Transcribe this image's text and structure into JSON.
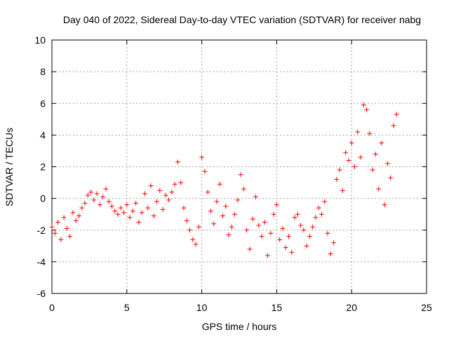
{
  "chart_data": {
    "type": "scatter",
    "title": "Day 040 of 2022, Sidereal Day-to-day VTEC variation (SDTVAR) for receiver nabg",
    "xlabel": "GPS time / hours",
    "ylabel": "SDTVAR / TECUs",
    "xlim": [
      0,
      25
    ],
    "ylim": [
      -6,
      10
    ],
    "xticks": [
      0,
      5,
      10,
      15,
      20,
      25
    ],
    "yticks": [
      -6,
      -4,
      -2,
      0,
      2,
      4,
      6,
      8,
      10
    ],
    "xtick_labels": [
      "0",
      "5",
      "10",
      "15",
      "20",
      "25"
    ],
    "ytick_labels": [
      "-6",
      "-4",
      "-2",
      "0",
      "2",
      "4",
      "6",
      "8",
      "10"
    ],
    "grid": true,
    "legend": "none",
    "marker": "plus",
    "color": "#ff0000",
    "series": [
      {
        "name": "SDTVAR",
        "x": [
          0.0,
          0.2,
          0.4,
          0.6,
          0.8,
          1.0,
          1.2,
          1.4,
          1.6,
          1.8,
          2.0,
          2.2,
          2.4,
          2.6,
          2.8,
          3.0,
          3.2,
          3.4,
          3.6,
          3.8,
          4.0,
          4.2,
          4.4,
          4.6,
          4.8,
          5.0,
          5.2,
          5.4,
          5.6,
          5.8,
          6.0,
          6.2,
          6.4,
          6.6,
          6.8,
          7.0,
          7.2,
          7.4,
          7.6,
          7.8,
          8.0,
          8.2,
          8.4,
          8.6,
          8.8,
          9.0,
          9.2,
          9.4,
          9.6,
          9.8,
          10.0,
          10.2,
          10.4,
          10.6,
          10.8,
          11.0,
          11.2,
          11.4,
          11.6,
          11.8,
          12.0,
          12.2,
          12.4,
          12.6,
          12.8,
          13.0,
          13.2,
          13.4,
          13.6,
          13.8,
          14.0,
          14.2,
          14.4,
          14.6,
          14.8,
          15.0,
          15.2,
          15.4,
          15.6,
          15.8,
          16.0,
          16.2,
          16.4,
          16.6,
          16.8,
          17.0,
          17.2,
          17.4,
          17.6,
          17.8,
          18.0,
          18.2,
          18.4,
          18.6,
          18.8,
          19.0,
          19.2,
          19.4,
          19.6,
          19.8,
          20.0,
          20.2,
          20.4,
          20.6,
          20.8,
          21.0,
          21.2,
          21.4,
          21.6,
          21.8,
          22.0,
          22.2,
          22.4,
          22.6,
          22.8,
          23.0
        ],
        "y": [
          -1.8,
          -2.2,
          -1.5,
          -2.6,
          -1.2,
          -1.9,
          -2.4,
          -0.9,
          -1.4,
          -1.1,
          -0.6,
          -0.3,
          0.2,
          0.4,
          -0.1,
          0.3,
          -0.4,
          0.1,
          0.6,
          -0.2,
          -0.5,
          -0.8,
          -1.0,
          -0.6,
          -0.9,
          -0.4,
          -1.2,
          -0.8,
          -0.3,
          -1.5,
          -0.9,
          0.3,
          -0.6,
          0.8,
          -1.1,
          -0.2,
          0.5,
          -0.7,
          0.2,
          -0.1,
          0.4,
          0.9,
          2.3,
          1.0,
          -0.6,
          -1.4,
          -2.0,
          -2.6,
          -2.9,
          -1.8,
          2.6,
          1.7,
          0.4,
          -0.8,
          -1.6,
          -0.2,
          0.9,
          -1.1,
          -0.5,
          -2.3,
          -1.8,
          -1.0,
          -0.1,
          1.5,
          0.6,
          -2.0,
          -3.2,
          -1.3,
          0.1,
          -1.7,
          -2.4,
          -1.5,
          -3.6,
          -2.2,
          -1.0,
          -0.4,
          -2.6,
          -1.9,
          -3.1,
          -2.4,
          -3.4,
          -1.2,
          -1.0,
          -1.7,
          -2.0,
          -3.0,
          -2.4,
          -1.8,
          -1.2,
          -0.6,
          -1.0,
          -0.2,
          -2.2,
          -3.5,
          -2.8,
          1.2,
          1.8,
          0.5,
          2.9,
          2.4,
          3.5,
          2.0,
          4.2,
          2.6,
          5.9,
          5.6,
          4.1,
          1.8,
          2.8,
          0.6,
          3.5,
          -0.4,
          2.2,
          1.3,
          4.6,
          5.3
        ]
      }
    ]
  }
}
